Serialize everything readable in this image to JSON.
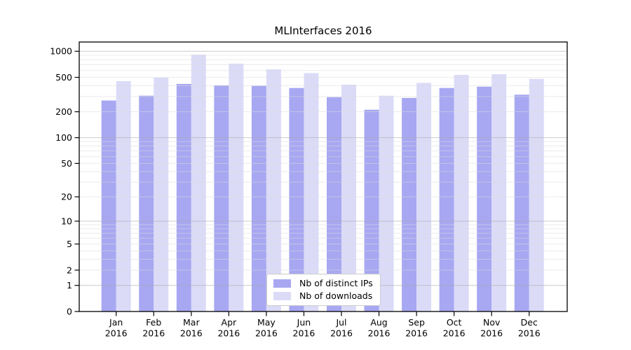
{
  "chart_data": {
    "type": "bar",
    "title": "MLInterfaces 2016",
    "categories": [
      "Jan",
      "Feb",
      "Mar",
      "Apr",
      "May",
      "Jun",
      "Jul",
      "Aug",
      "Sep",
      "Oct",
      "Nov",
      "Dec"
    ],
    "x_tick_second_line": "2016",
    "series": [
      {
        "name": "Nb of distinct IPs",
        "color": "#a7a7f2",
        "values": [
          270,
          307,
          420,
          405,
          400,
          377,
          295,
          211,
          289,
          377,
          390,
          315
        ]
      },
      {
        "name": "Nb of downloads",
        "color": "#dbdbf8",
        "values": [
          452,
          495,
          915,
          720,
          618,
          560,
          411,
          307,
          432,
          534,
          543,
          480
        ]
      }
    ],
    "xlabel": "",
    "ylabel": "",
    "y_ticks": [
      0,
      1,
      2,
      5,
      10,
      20,
      50,
      100,
      200,
      500,
      1000
    ],
    "y_scale": "log1p",
    "ylim": [
      0,
      1000
    ],
    "grid": "horizontal log minor+major, drawn over bars",
    "legend_position": "inside bottom-center",
    "colors": {
      "frame": "#000000",
      "grid_major": "#aaaaaa",
      "grid_minor": "#dcdcdc",
      "background": "#ffffff",
      "text": "#000000"
    }
  }
}
